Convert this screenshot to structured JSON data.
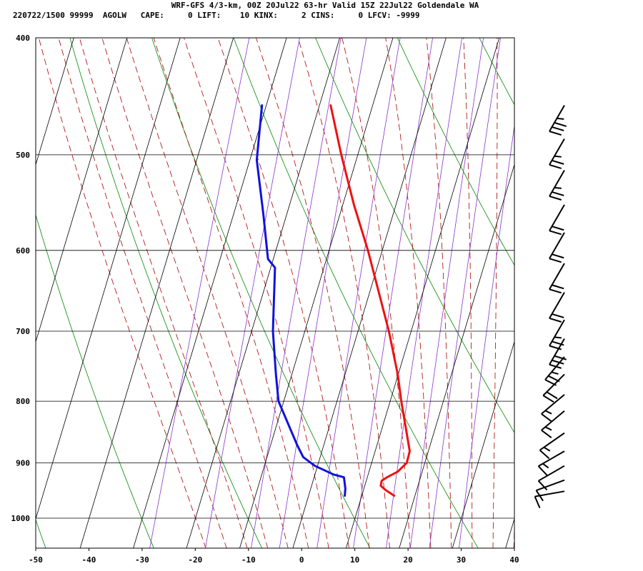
{
  "title": "WRF-GFS 4/3-km, 00Z 20Jul22 63-hr Valid 15Z 22Jul22 Goldendale WA",
  "indices_line": "220722/1500 99999  AGOLW   CAPE:     0 LIFT:    10 KINX:     2 CINS:     0 LFCV: -9999",
  "colors": {
    "temperature": "#ee1111",
    "dewpoint": "#1111dd",
    "isotherm": "#000000",
    "isobar": "#000000",
    "dry_adiabat": "#008800",
    "moist_adiabat": "#aa0000",
    "mixing_ratio": "#8833cc",
    "barb": "#000000"
  },
  "chart_data": {
    "type": "line",
    "subtype": "skew-T log-p sounding",
    "title": "WRF-GFS 4/3-km, 00Z 20Jul22 63-hr Valid 15Z 22Jul22 Goldendale WA",
    "x_axis": {
      "units": "°C",
      "xlim": [
        -50,
        40
      ],
      "ticks": [
        -50,
        -40,
        -30,
        -20,
        -10,
        0,
        10,
        20,
        30,
        40
      ]
    },
    "y_axis": {
      "units": "mb",
      "scale": "log",
      "ylim": [
        1040,
        400
      ],
      "ticks": [
        400,
        500,
        600,
        700,
        800,
        900,
        1000
      ]
    },
    "grid": true,
    "series": [
      {
        "role": "temperature",
        "points": [
          [
            958,
            16.1
          ],
          [
            948,
            14.2
          ],
          [
            940,
            13.0
          ],
          [
            931,
            12.9
          ],
          [
            925,
            13.7
          ],
          [
            915,
            15.4
          ],
          [
            900,
            16.6
          ],
          [
            880,
            16.5
          ],
          [
            850,
            14.9
          ],
          [
            800,
            12.1
          ],
          [
            760,
            9.9
          ],
          [
            700,
            5.8
          ],
          [
            600,
            -2.7
          ],
          [
            550,
            -7.9
          ],
          [
            500,
            -13.1
          ],
          [
            455,
            -17.9
          ]
        ]
      },
      {
        "role": "dewpoint",
        "points": [
          [
            958,
            6.8
          ],
          [
            945,
            6.5
          ],
          [
            925,
            5.6
          ],
          [
            920,
            3.5
          ],
          [
            905,
            -0.5
          ],
          [
            890,
            -3.2
          ],
          [
            870,
            -5.0
          ],
          [
            800,
            -11.0
          ],
          [
            760,
            -13.0
          ],
          [
            700,
            -16.0
          ],
          [
            620,
            -19.2
          ],
          [
            610,
            -21.0
          ],
          [
            560,
            -24.4
          ],
          [
            505,
            -28.7
          ],
          [
            455,
            -30.8
          ]
        ]
      }
    ],
    "wind_barbs": [
      {
        "p": 455,
        "dir": 210,
        "spd": 35
      },
      {
        "p": 485,
        "dir": 210,
        "spd": 25
      },
      {
        "p": 515,
        "dir": 210,
        "spd": 25
      },
      {
        "p": 550,
        "dir": 210,
        "spd": 20
      },
      {
        "p": 580,
        "dir": 210,
        "spd": 20
      },
      {
        "p": 615,
        "dir": 210,
        "spd": 20
      },
      {
        "p": 650,
        "dir": 210,
        "spd": 20
      },
      {
        "p": 685,
        "dir": 210,
        "spd": 25
      },
      {
        "p": 710,
        "dir": 210,
        "spd": 30
      },
      {
        "p": 735,
        "dir": 220,
        "spd": 25
      },
      {
        "p": 760,
        "dir": 225,
        "spd": 20
      },
      {
        "p": 790,
        "dir": 230,
        "spd": 15
      },
      {
        "p": 815,
        "dir": 230,
        "spd": 15
      },
      {
        "p": 850,
        "dir": 235,
        "spd": 15
      },
      {
        "p": 880,
        "dir": 240,
        "spd": 15
      },
      {
        "p": 905,
        "dir": 240,
        "spd": 10
      },
      {
        "p": 930,
        "dir": 250,
        "spd": 10
      },
      {
        "p": 950,
        "dir": 260,
        "spd": 10
      }
    ]
  }
}
